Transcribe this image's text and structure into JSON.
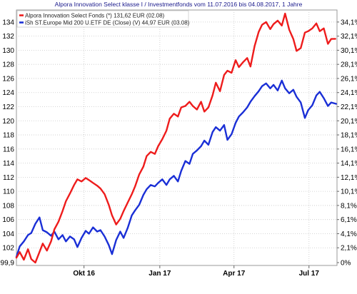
{
  "chart_data": {
    "type": "line",
    "title": "Alpora Innovation Select klasse I / Investmentfonds vom 11.07.2016 bis 04.08.2017, 1 Jahre",
    "left_axis": {
      "ticks": [
        "99,9",
        "102",
        "104",
        "106",
        "108",
        "110",
        "112",
        "114",
        "116",
        "118",
        "120",
        "122",
        "124",
        "126",
        "128",
        "130",
        "132",
        "134"
      ],
      "range": [
        99.9,
        135.2
      ]
    },
    "right_axis": {
      "ticks": [
        "0%",
        "2,1%",
        "4,1%",
        "6,1%",
        "8,1%",
        "10,1%",
        "12,1%",
        "14,1%",
        "16,1%",
        "18,1%",
        "20,1%",
        "22,1%",
        "24,1%",
        "26,1%",
        "28,1%",
        "30,1%",
        "32,1%",
        "34,1%"
      ]
    },
    "x_axis": {
      "range": [
        "2016-07-11",
        "2017-08-04"
      ],
      "ticks": [
        {
          "label": "Okt 16",
          "date": "2016-10-01"
        },
        {
          "label": "Jan 17",
          "date": "2017-01-01"
        },
        {
          "label": "Apr 17",
          "date": "2017-04-01"
        },
        {
          "label": "Jul 17",
          "date": "2017-07-01"
        }
      ]
    },
    "grid": true,
    "legend_position": "top-left",
    "series": [
      {
        "name": "Alpora Innovation Select Fonds (*) 131,62 EUR (02.08)",
        "color": "#ee1c1c",
        "points": [
          [
            "2016-07-11",
            100.6
          ],
          [
            "2016-07-15",
            101.4
          ],
          [
            "2016-07-20",
            100.3
          ],
          [
            "2016-07-25",
            101.8
          ],
          [
            "2016-07-29",
            100.4
          ],
          [
            "2016-08-03",
            99.9
          ],
          [
            "2016-08-08",
            101.4
          ],
          [
            "2016-08-12",
            102.6
          ],
          [
            "2016-08-17",
            101.6
          ],
          [
            "2016-08-22",
            102.9
          ],
          [
            "2016-08-26",
            104.6
          ],
          [
            "2016-08-31",
            105.7
          ],
          [
            "2016-09-05",
            107.2
          ],
          [
            "2016-09-09",
            108.6
          ],
          [
            "2016-09-14",
            109.7
          ],
          [
            "2016-09-19",
            110.9
          ],
          [
            "2016-09-23",
            111.7
          ],
          [
            "2016-09-28",
            111.4
          ],
          [
            "2016-10-03",
            111.9
          ],
          [
            "2016-10-07",
            111.6
          ],
          [
            "2016-10-12",
            111.2
          ],
          [
            "2016-10-17",
            110.8
          ],
          [
            "2016-10-21",
            110.4
          ],
          [
            "2016-10-26",
            109.6
          ],
          [
            "2016-10-31",
            108.1
          ],
          [
            "2016-11-04",
            106.6
          ],
          [
            "2016-11-09",
            105.3
          ],
          [
            "2016-11-14",
            106.1
          ],
          [
            "2016-11-18",
            107.2
          ],
          [
            "2016-11-23",
            108.4
          ],
          [
            "2016-11-28",
            109.6
          ],
          [
            "2016-12-02",
            110.7
          ],
          [
            "2016-12-07",
            112.4
          ],
          [
            "2016-12-12",
            113.5
          ],
          [
            "2016-12-16",
            115.0
          ],
          [
            "2016-12-21",
            115.6
          ],
          [
            "2016-12-26",
            115.3
          ],
          [
            "2016-12-30",
            116.4
          ],
          [
            "2017-01-04",
            117.4
          ],
          [
            "2017-01-09",
            118.6
          ],
          [
            "2017-01-13",
            120.3
          ],
          [
            "2017-01-18",
            121.0
          ],
          [
            "2017-01-23",
            120.6
          ],
          [
            "2017-01-27",
            121.9
          ],
          [
            "2017-02-01",
            122.1
          ],
          [
            "2017-02-06",
            122.7
          ],
          [
            "2017-02-10",
            122.1
          ],
          [
            "2017-02-15",
            121.6
          ],
          [
            "2017-02-20",
            122.7
          ],
          [
            "2017-02-24",
            121.3
          ],
          [
            "2017-03-01",
            121.9
          ],
          [
            "2017-03-06",
            123.6
          ],
          [
            "2017-03-10",
            125.4
          ],
          [
            "2017-03-15",
            124.2
          ],
          [
            "2017-03-20",
            126.5
          ],
          [
            "2017-03-24",
            127.1
          ],
          [
            "2017-03-29",
            126.8
          ],
          [
            "2017-04-03",
            128.6
          ],
          [
            "2017-04-07",
            127.6
          ],
          [
            "2017-04-12",
            128.3
          ],
          [
            "2017-04-17",
            128.9
          ],
          [
            "2017-04-21",
            127.7
          ],
          [
            "2017-04-26",
            130.6
          ],
          [
            "2017-05-01",
            132.6
          ],
          [
            "2017-05-05",
            133.6
          ],
          [
            "2017-05-10",
            134.0
          ],
          [
            "2017-05-15",
            133.0
          ],
          [
            "2017-05-19",
            133.7
          ],
          [
            "2017-05-24",
            134.2
          ],
          [
            "2017-05-29",
            133.5
          ],
          [
            "2017-06-02",
            135.2
          ],
          [
            "2017-06-07",
            132.9
          ],
          [
            "2017-06-12",
            131.6
          ],
          [
            "2017-06-16",
            129.9
          ],
          [
            "2017-06-21",
            130.3
          ],
          [
            "2017-06-26",
            132.5
          ],
          [
            "2017-06-30",
            132.7
          ],
          [
            "2017-07-05",
            133.1
          ],
          [
            "2017-07-10",
            133.8
          ],
          [
            "2017-07-14",
            132.7
          ],
          [
            "2017-07-19",
            133.1
          ],
          [
            "2017-07-24",
            130.9
          ],
          [
            "2017-07-28",
            131.6
          ],
          [
            "2017-08-02",
            131.62
          ]
        ]
      },
      {
        "name": "iSh ST.Europe Mid 200 U.ETF DE (Close) (V) 44,97 EUR (03.08)",
        "color": "#1a2fd6",
        "points": [
          [
            "2016-07-11",
            100.7
          ],
          [
            "2016-07-15",
            102.2
          ],
          [
            "2016-07-20",
            102.9
          ],
          [
            "2016-07-25",
            103.8
          ],
          [
            "2016-07-29",
            104.1
          ],
          [
            "2016-08-03",
            105.4
          ],
          [
            "2016-08-08",
            106.3
          ],
          [
            "2016-08-12",
            104.5
          ],
          [
            "2016-08-17",
            104.2
          ],
          [
            "2016-08-22",
            103.7
          ],
          [
            "2016-08-26",
            104.3
          ],
          [
            "2016-08-31",
            103.2
          ],
          [
            "2016-09-05",
            103.8
          ],
          [
            "2016-09-09",
            102.9
          ],
          [
            "2016-09-14",
            103.6
          ],
          [
            "2016-09-19",
            103.2
          ],
          [
            "2016-09-23",
            102.1
          ],
          [
            "2016-09-28",
            103.4
          ],
          [
            "2016-10-03",
            104.4
          ],
          [
            "2016-10-07",
            104.0
          ],
          [
            "2016-10-12",
            104.9
          ],
          [
            "2016-10-17",
            104.3
          ],
          [
            "2016-10-21",
            104.5
          ],
          [
            "2016-10-26",
            103.6
          ],
          [
            "2016-10-31",
            102.4
          ],
          [
            "2016-11-04",
            101.1
          ],
          [
            "2016-11-09",
            103.1
          ],
          [
            "2016-11-14",
            104.3
          ],
          [
            "2016-11-18",
            103.4
          ],
          [
            "2016-11-23",
            104.8
          ],
          [
            "2016-11-28",
            106.6
          ],
          [
            "2016-12-02",
            107.3
          ],
          [
            "2016-12-07",
            108.1
          ],
          [
            "2016-12-12",
            109.5
          ],
          [
            "2016-12-16",
            110.3
          ],
          [
            "2016-12-21",
            110.9
          ],
          [
            "2016-12-26",
            110.7
          ],
          [
            "2016-12-30",
            111.2
          ],
          [
            "2017-01-04",
            111.7
          ],
          [
            "2017-01-09",
            110.9
          ],
          [
            "2017-01-13",
            111.7
          ],
          [
            "2017-01-18",
            112.2
          ],
          [
            "2017-01-23",
            111.4
          ],
          [
            "2017-01-27",
            112.9
          ],
          [
            "2017-02-01",
            114.3
          ],
          [
            "2017-02-06",
            113.9
          ],
          [
            "2017-02-10",
            115.3
          ],
          [
            "2017-02-15",
            115.8
          ],
          [
            "2017-02-20",
            116.4
          ],
          [
            "2017-02-24",
            117.2
          ],
          [
            "2017-03-01",
            116.6
          ],
          [
            "2017-03-06",
            118.4
          ],
          [
            "2017-03-10",
            119.1
          ],
          [
            "2017-03-15",
            118.6
          ],
          [
            "2017-03-20",
            119.4
          ],
          [
            "2017-03-24",
            117.3
          ],
          [
            "2017-03-29",
            118.1
          ],
          [
            "2017-04-03",
            119.7
          ],
          [
            "2017-04-07",
            120.6
          ],
          [
            "2017-04-12",
            121.2
          ],
          [
            "2017-04-17",
            121.9
          ],
          [
            "2017-04-21",
            122.7
          ],
          [
            "2017-04-26",
            123.5
          ],
          [
            "2017-05-01",
            124.2
          ],
          [
            "2017-05-05",
            124.9
          ],
          [
            "2017-05-10",
            125.3
          ],
          [
            "2017-05-15",
            124.6
          ],
          [
            "2017-05-19",
            125.1
          ],
          [
            "2017-05-24",
            124.3
          ],
          [
            "2017-05-29",
            125.7
          ],
          [
            "2017-06-02",
            124.6
          ],
          [
            "2017-06-07",
            123.9
          ],
          [
            "2017-06-12",
            124.4
          ],
          [
            "2017-06-16",
            123.4
          ],
          [
            "2017-06-21",
            122.6
          ],
          [
            "2017-06-26",
            120.4
          ],
          [
            "2017-06-30",
            121.5
          ],
          [
            "2017-07-05",
            122.2
          ],
          [
            "2017-07-10",
            123.6
          ],
          [
            "2017-07-14",
            124.1
          ],
          [
            "2017-07-19",
            123.2
          ],
          [
            "2017-07-24",
            122.1
          ],
          [
            "2017-07-28",
            122.6
          ],
          [
            "2017-08-03",
            122.4
          ]
        ]
      }
    ]
  }
}
